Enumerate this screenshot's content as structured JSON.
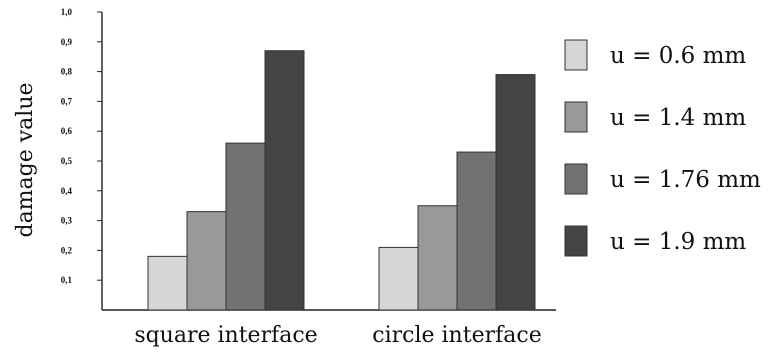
{
  "chart_data": {
    "type": "bar",
    "title": "",
    "xlabel": "",
    "ylabel": "damage value",
    "ylim": [
      0,
      1.0
    ],
    "yticks": [
      "0,1",
      "0,2",
      "0,3",
      "0,4",
      "0,5",
      "0,6",
      "0,7",
      "0,8",
      "0,9",
      "1,0"
    ],
    "categories": [
      "square interface",
      "circle interface"
    ],
    "series": [
      {
        "name": "u = 0.6 mm",
        "color": "#d6d6d6",
        "values": [
          0.18,
          0.21
        ]
      },
      {
        "name": "u = 1.4 mm",
        "color": "#999999",
        "values": [
          0.33,
          0.35
        ]
      },
      {
        "name": "u = 1.76 mm",
        "color": "#727272",
        "values": [
          0.56,
          0.53
        ]
      },
      {
        "name": "u = 1.9 mm",
        "color": "#444444",
        "values": [
          0.87,
          0.79
        ]
      }
    ],
    "legend_position": "right",
    "grid": false
  }
}
